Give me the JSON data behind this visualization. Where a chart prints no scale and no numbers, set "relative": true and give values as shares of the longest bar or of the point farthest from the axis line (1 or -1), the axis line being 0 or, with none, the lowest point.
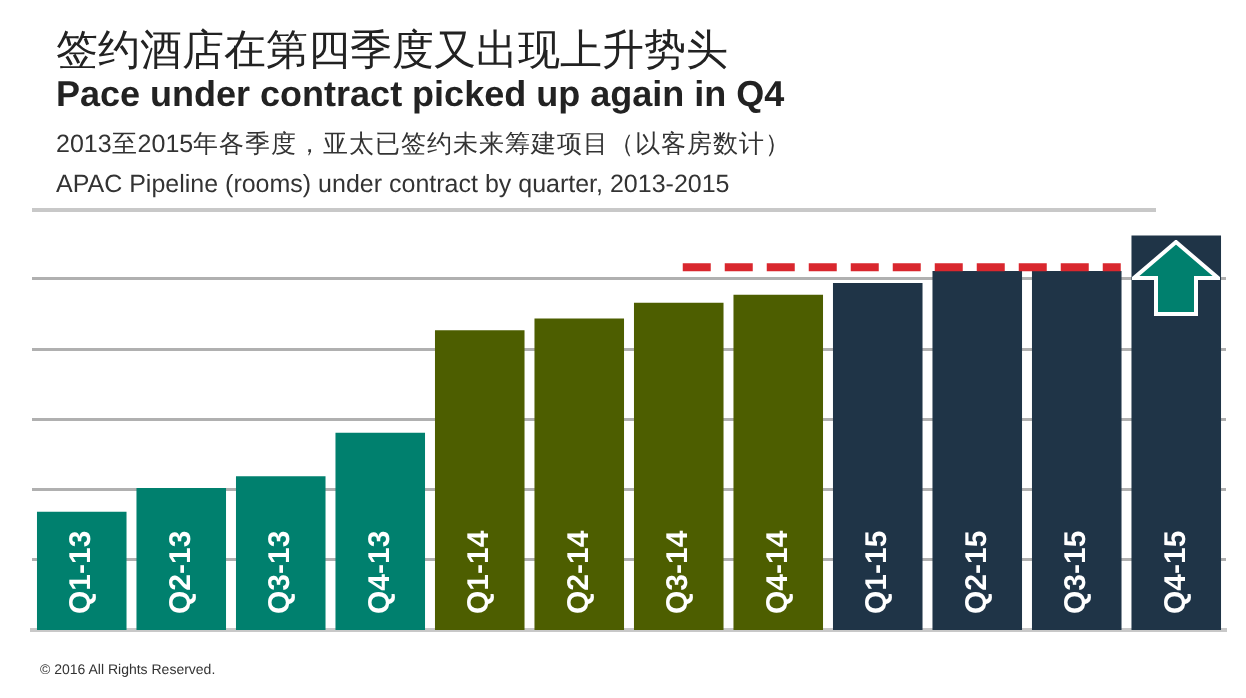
{
  "chart_data": {
    "type": "bar",
    "title": "签约酒店在第四季度又出现上升势头\nPace under contract picked up again in Q4",
    "subtitle": "2013至2015年各季度，亚太已签约未来筹建项目（以客房数计）\nAPAC Pipeline (rooms) under contract by quarter, 2013-2015",
    "categories": [
      "Q1-13",
      "Q2-13",
      "Q3-13",
      "Q4-13",
      "Q1-14",
      "Q2-14",
      "Q3-14",
      "Q4-14",
      "Q1-15",
      "Q2-15",
      "Q3-15",
      "Q4-15"
    ],
    "values": [
      0.3,
      0.36,
      0.39,
      0.5,
      0.76,
      0.79,
      0.83,
      0.85,
      0.88,
      0.91,
      0.91,
      1
    ],
    "colors": [
      "#00806e",
      "#00806e",
      "#00806e",
      "#00806e",
      "#4d5e00",
      "#4d5e00",
      "#4d5e00",
      "#4d5e00",
      "#1f3447",
      "#1f3447",
      "#1f3447",
      "#1f3447"
    ],
    "relative": true,
    "grid": "y",
    "legend": false,
    "ref_lines": [
      {
        "axis": "y",
        "value": 0.92,
        "color": "#d9272e",
        "line_style": "dashed"
      }
    ],
    "annotations": [
      "© 2016 All Rights Reserved."
    ]
  }
}
